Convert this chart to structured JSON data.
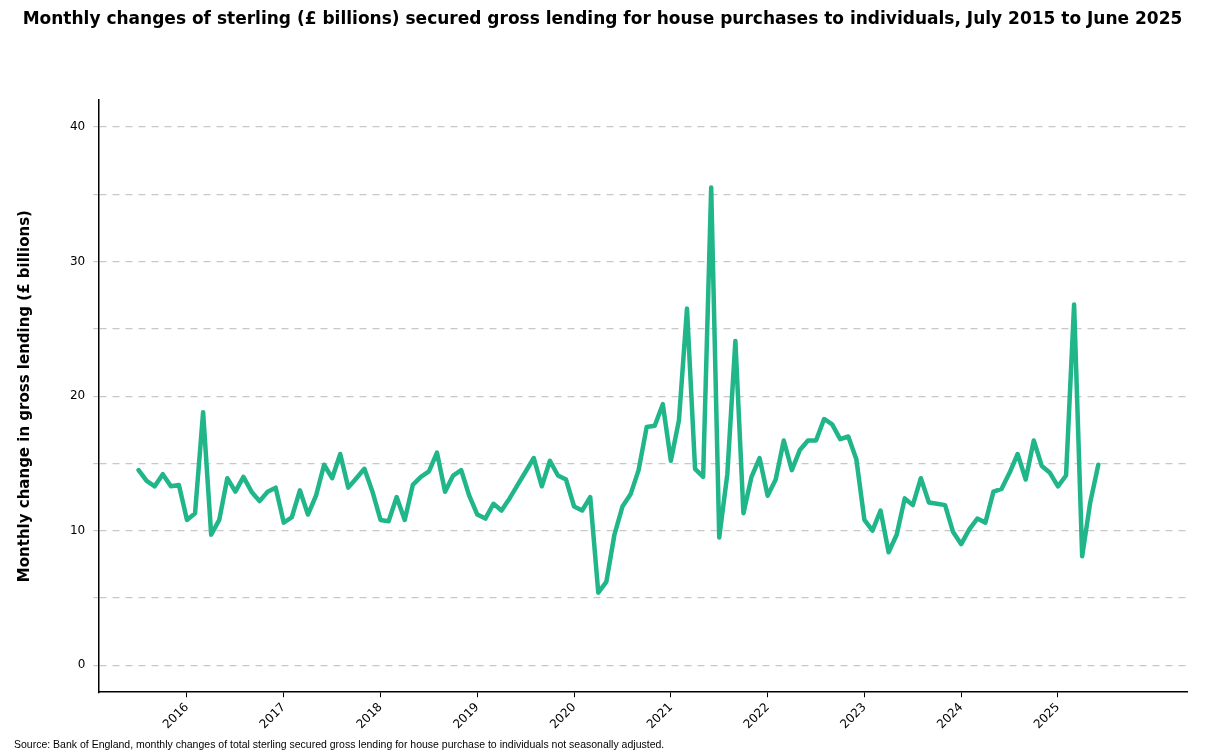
{
  "chart_data": {
    "type": "line",
    "title": "Monthly changes of sterling (£ billions) secured gross lending for house purchases to individuals, July 2015 to June 2025",
    "ylabel": "Monthly change in gross lending (£ billions)",
    "annotations": [
      "Source: Bank of England, monthly changes of total sterling secured gross lending for house purchase to individuals not seasonally adjusted."
    ],
    "x": [
      "2015-07",
      "2015-08",
      "2015-09",
      "2015-10",
      "2015-11",
      "2015-12",
      "2016-01",
      "2016-02",
      "2016-03",
      "2016-04",
      "2016-05",
      "2016-06",
      "2016-07",
      "2016-08",
      "2016-09",
      "2016-10",
      "2016-11",
      "2016-12",
      "2017-01",
      "2017-02",
      "2017-03",
      "2017-04",
      "2017-05",
      "2017-06",
      "2017-07",
      "2017-08",
      "2017-09",
      "2017-10",
      "2017-11",
      "2017-12",
      "2018-01",
      "2018-02",
      "2018-03",
      "2018-04",
      "2018-05",
      "2018-06",
      "2018-07",
      "2018-08",
      "2018-09",
      "2018-10",
      "2018-11",
      "2018-12",
      "2019-01",
      "2019-02",
      "2019-03",
      "2019-04",
      "2019-05",
      "2019-06",
      "2019-07",
      "2019-08",
      "2019-09",
      "2019-10",
      "2019-11",
      "2019-12",
      "2020-01",
      "2020-02",
      "2020-03",
      "2020-04",
      "2020-05",
      "2020-06",
      "2020-07",
      "2020-08",
      "2020-09",
      "2020-10",
      "2020-11",
      "2020-12",
      "2021-01",
      "2021-02",
      "2021-03",
      "2021-04",
      "2021-05",
      "2021-06",
      "2021-07",
      "2021-08",
      "2021-09",
      "2021-10",
      "2021-11",
      "2021-12",
      "2022-01",
      "2022-02",
      "2022-03",
      "2022-04",
      "2022-05",
      "2022-06",
      "2022-07",
      "2022-08",
      "2022-09",
      "2022-10",
      "2022-11",
      "2022-12",
      "2023-01",
      "2023-02",
      "2023-03",
      "2023-04",
      "2023-05",
      "2023-06",
      "2023-07",
      "2023-08",
      "2023-09",
      "2023-10",
      "2023-11",
      "2023-12",
      "2024-01",
      "2024-02",
      "2024-03",
      "2024-04",
      "2024-05",
      "2024-06",
      "2024-07",
      "2024-08",
      "2024-09",
      "2024-10",
      "2024-11",
      "2024-12",
      "2025-01",
      "2025-02",
      "2025-03",
      "2025-04",
      "2025-05",
      "2025-06"
    ],
    "series": [
      {
        "color": "#21b58a",
        "values": [
          14.5,
          13.7,
          13.3,
          14.2,
          13.3,
          13.4,
          10.8,
          11.3,
          18.8,
          9.7,
          10.8,
          13.9,
          12.9,
          14.0,
          12.9,
          12.2,
          12.9,
          13.2,
          10.6,
          11.0,
          13.0,
          11.2,
          12.6,
          14.9,
          13.9,
          15.7,
          13.2,
          13.9,
          14.6,
          12.9,
          10.8,
          10.7,
          12.5,
          10.8,
          13.4,
          14.0,
          14.4,
          15.8,
          12.9,
          14.1,
          14.5,
          12.6,
          11.2,
          10.9,
          12.0,
          11.5,
          12.4,
          13.4,
          14.4,
          15.4,
          13.3,
          15.2,
          14.1,
          13.8,
          11.8,
          11.5,
          12.5,
          5.4,
          6.2,
          9.7,
          11.8,
          12.7,
          14.5,
          17.7,
          17.8,
          19.4,
          15.2,
          18.2,
          26.5,
          14.6,
          14.0,
          35.5,
          9.5,
          14.2,
          24.1,
          11.3,
          14.0,
          15.4,
          12.6,
          13.8,
          16.7,
          14.5,
          16.0,
          16.7,
          16.7,
          18.3,
          17.9,
          16.8,
          17.0,
          15.3,
          10.8,
          10.0,
          11.5,
          8.4,
          9.7,
          12.4,
          11.9,
          13.9,
          12.1,
          12.0,
          11.9,
          9.9,
          9.0,
          10.1,
          10.9,
          10.6,
          12.9,
          13.1,
          14.3,
          15.7,
          13.8,
          16.7,
          14.8,
          14.3,
          13.3,
          14.1,
          26.8,
          8.1,
          12.1,
          14.9
        ]
      }
    ],
    "xlim": [
      "2015-02",
      "2026-05"
    ],
    "xticks": [
      "2016",
      "2017",
      "2018",
      "2019",
      "2020",
      "2021",
      "2022",
      "2023",
      "2024",
      "2025"
    ],
    "ylim": [
      -2,
      42
    ],
    "yticks": [
      0,
      {
        "value": 5,
        "label": null
      },
      10,
      {
        "value": 15,
        "label": null
      },
      20,
      {
        "value": 25,
        "label": null
      },
      30,
      {
        "value": 35,
        "label": null
      },
      40
    ],
    "grid": "y",
    "legend": false,
    "marker": "none",
    "line_style": "solid"
  }
}
